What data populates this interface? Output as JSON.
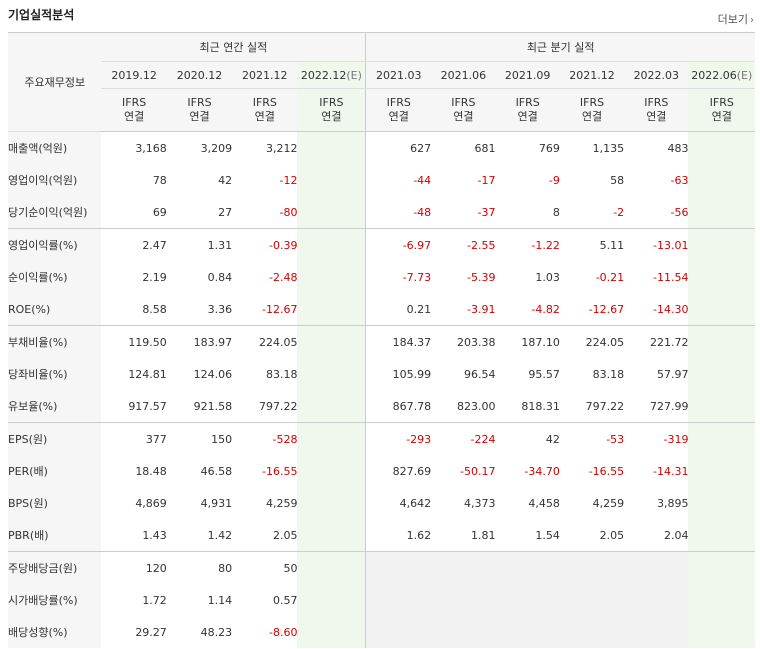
{
  "header": {
    "title": "기업실적분석",
    "more_label": "더보기"
  },
  "table": {
    "corner_label": "주요재무정보",
    "group_annual": "최근 연간 실적",
    "group_quarter": "최근 분기 실적",
    "periods": [
      "2019.12",
      "2020.12",
      "2021.12",
      "2022.12",
      "2021.03",
      "2021.06",
      "2021.09",
      "2021.12",
      "2022.03",
      "2022.06"
    ],
    "estimate_suffix": "(E)",
    "ifrs_top": "IFRS",
    "ifrs_bottom": "연결",
    "rows": [
      {
        "label": "매출액(억원)",
        "values": [
          "3,168",
          "3,209",
          "3,212",
          "",
          "627",
          "681",
          "769",
          "1,135",
          "483",
          ""
        ]
      },
      {
        "label": "영업이익(억원)",
        "values": [
          "78",
          "42",
          "-12",
          "",
          "-44",
          "-17",
          "-9",
          "58",
          "-63",
          ""
        ]
      },
      {
        "label": "당기순이익(억원)",
        "values": [
          "69",
          "27",
          "-80",
          "",
          "-48",
          "-37",
          "8",
          "-2",
          "-56",
          ""
        ]
      },
      {
        "label": "영업이익률(%)",
        "values": [
          "2.47",
          "1.31",
          "-0.39",
          "",
          "-6.97",
          "-2.55",
          "-1.22",
          "5.11",
          "-13.01",
          ""
        ]
      },
      {
        "label": "순이익률(%)",
        "values": [
          "2.19",
          "0.84",
          "-2.48",
          "",
          "-7.73",
          "-5.39",
          "1.03",
          "-0.21",
          "-11.54",
          ""
        ]
      },
      {
        "label": "ROE(%)",
        "values": [
          "8.58",
          "3.36",
          "-12.67",
          "",
          "0.21",
          "-3.91",
          "-4.82",
          "-12.67",
          "-14.30",
          ""
        ]
      },
      {
        "label": "부채비율(%)",
        "values": [
          "119.50",
          "183.97",
          "224.05",
          "",
          "184.37",
          "203.38",
          "187.10",
          "224.05",
          "221.72",
          ""
        ]
      },
      {
        "label": "당좌비율(%)",
        "values": [
          "124.81",
          "124.06",
          "83.18",
          "",
          "105.99",
          "96.54",
          "95.57",
          "83.18",
          "57.97",
          ""
        ]
      },
      {
        "label": "유보율(%)",
        "values": [
          "917.57",
          "921.58",
          "797.22",
          "",
          "867.78",
          "823.00",
          "818.31",
          "797.22",
          "727.99",
          ""
        ]
      },
      {
        "label": "EPS(원)",
        "values": [
          "377",
          "150",
          "-528",
          "",
          "-293",
          "-224",
          "42",
          "-53",
          "-319",
          ""
        ]
      },
      {
        "label": "PER(배)",
        "values": [
          "18.48",
          "46.58",
          "-16.55",
          "",
          "827.69",
          "-50.17",
          "-34.70",
          "-16.55",
          "-14.31",
          ""
        ]
      },
      {
        "label": "BPS(원)",
        "values": [
          "4,869",
          "4,931",
          "4,259",
          "",
          "4,642",
          "4,373",
          "4,458",
          "4,259",
          "3,895",
          ""
        ]
      },
      {
        "label": "PBR(배)",
        "values": [
          "1.43",
          "1.42",
          "2.05",
          "",
          "1.62",
          "1.81",
          "1.54",
          "2.05",
          "2.04",
          ""
        ]
      },
      {
        "label": "주당배당금(원)",
        "values": [
          "120",
          "80",
          "50",
          "",
          "",
          "",
          "",
          "",
          "",
          ""
        ]
      },
      {
        "label": "시가배당률(%)",
        "values": [
          "1.72",
          "1.14",
          "0.57",
          "",
          "",
          "",
          "",
          "",
          "",
          ""
        ]
      },
      {
        "label": "배당성향(%)",
        "values": [
          "29.27",
          "48.23",
          "-8.60",
          "",
          "",
          "",
          "",
          "",
          "",
          ""
        ]
      }
    ]
  }
}
